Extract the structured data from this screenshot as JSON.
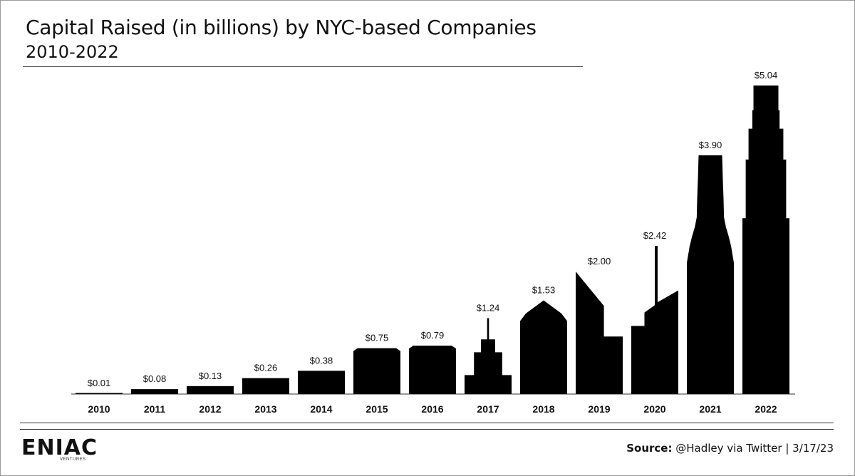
{
  "header": {
    "title": "Capital Raised (in billions) by NYC-based Companies",
    "subtitle": "2010-2022"
  },
  "chart_data": {
    "type": "bar",
    "categories": [
      "2010",
      "2011",
      "2012",
      "2013",
      "2014",
      "2015",
      "2016",
      "2017",
      "2018",
      "2019",
      "2020",
      "2021",
      "2022"
    ],
    "values": [
      0.01,
      0.08,
      0.13,
      0.26,
      0.38,
      0.75,
      0.79,
      1.24,
      1.53,
      2.0,
      2.42,
      3.9,
      5.04
    ],
    "data_labels": [
      "$0.01",
      "$0.08",
      "$0.13",
      "$0.26",
      "$0.38",
      "$0.75",
      "$0.79",
      "$1.24",
      "$1.53",
      "$2.00",
      "$2.42",
      "$3.90",
      "$5.04"
    ],
    "title": "Capital Raised (in billions) by NYC-based Companies",
    "subtitle": "2010-2022",
    "xlabel": "",
    "ylabel": "",
    "bar_style": "building silhouettes",
    "bar_color": "#000000",
    "grid": false,
    "legend": "none"
  },
  "footer": {
    "logo_text": "ENIAC",
    "logo_subtext": "VENTURES",
    "source_label": "Source:",
    "source_text": "@Hadley via Twitter | 3/17/23"
  }
}
